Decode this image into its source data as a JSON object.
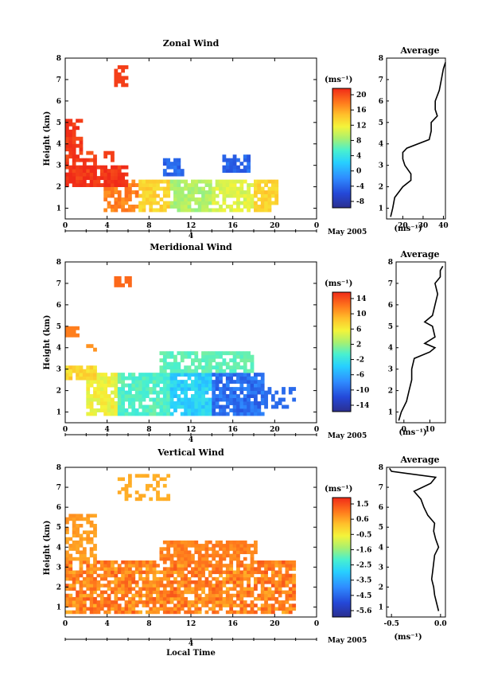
{
  "chart_data": [
    {
      "type": "heatmap",
      "title": "Zonal Wind",
      "ylabel": "Height (km)",
      "xlabel": "",
      "x_ticks": [
        "0",
        "4",
        "8",
        "12",
        "16",
        "20",
        "0"
      ],
      "y_ticks": [
        "1",
        "2",
        "3",
        "4",
        "5",
        "6",
        "7",
        "8"
      ],
      "xlim": [
        0,
        24
      ],
      "ylim": [
        0.5,
        8
      ],
      "date_axis_day": "4",
      "date_axis_label": "May 2005",
      "colorbar": {
        "unit_label": "(ms⁻¹)",
        "ticks": [
          "20",
          "16",
          "12",
          "8",
          "4",
          "0",
          "-4",
          "-8"
        ],
        "range": [
          -10,
          22
        ]
      },
      "profile": {
        "title": "Average",
        "x_ticks": [
          "20",
          "30",
          "40"
        ],
        "xlim": [
          12,
          41
        ],
        "xlabel": "(ms⁻¹)",
        "heights": [
          0.6,
          1.0,
          1.5,
          2.0,
          2.3,
          2.6,
          3.0,
          3.3,
          3.6,
          3.8,
          4.2,
          4.6,
          5.0,
          5.3,
          5.6,
          6.0,
          6.5,
          7.0,
          7.5,
          7.8
        ],
        "values": [
          14,
          15,
          16,
          20,
          24,
          24,
          21,
          20,
          20,
          22,
          33,
          34,
          34,
          37,
          36,
          36,
          38,
          39,
          40,
          41
        ]
      }
    },
    {
      "type": "heatmap",
      "title": "Meridional Wind",
      "ylabel": "Height (km)",
      "xlabel": "",
      "x_ticks": [
        "0",
        "4",
        "8",
        "12",
        "16",
        "20",
        "0"
      ],
      "y_ticks": [
        "1",
        "2",
        "3",
        "4",
        "5",
        "6",
        "7",
        "8"
      ],
      "xlim": [
        0,
        24
      ],
      "ylim": [
        0.5,
        8
      ],
      "date_axis_day": "4",
      "date_axis_label": "May 2005",
      "colorbar": {
        "unit_label": "(ms⁻¹)",
        "ticks": [
          "14",
          "10",
          "6",
          "2",
          "-2",
          "-6",
          "-10",
          "-14"
        ],
        "range": [
          -16,
          16
        ]
      },
      "profile": {
        "title": "Average",
        "x_ticks": [
          "0",
          "10"
        ],
        "xlim": [
          -3,
          16
        ],
        "xlabel": "(ms⁻¹)",
        "heights": [
          0.6,
          1.0,
          1.5,
          2.0,
          2.5,
          3.0,
          3.5,
          3.8,
          4.0,
          4.2,
          4.5,
          5.0,
          5.2,
          5.5,
          6.0,
          6.5,
          7.0,
          7.3,
          7.6,
          7.8
        ],
        "values": [
          -2,
          -1,
          1,
          2,
          3,
          3,
          4,
          10,
          12,
          8,
          12,
          11,
          8,
          11,
          12,
          13,
          12,
          14,
          14,
          15
        ]
      }
    },
    {
      "type": "heatmap",
      "title": "Vertical Wind",
      "ylabel": "Height (km)",
      "xlabel": "Local Time",
      "x_ticks": [
        "0",
        "4",
        "8",
        "12",
        "16",
        "20",
        "0"
      ],
      "y_ticks": [
        "1",
        "2",
        "3",
        "4",
        "5",
        "6",
        "7",
        "8"
      ],
      "xlim": [
        0,
        24
      ],
      "ylim": [
        0.5,
        8
      ],
      "date_axis_day": "4",
      "date_axis_label": "May 2005",
      "colorbar": {
        "unit_label": "(ms⁻¹)",
        "ticks": [
          "1.5",
          "0.6",
          "-0.5",
          "-1.6",
          "-2.5",
          "-3.5",
          "-4.5",
          "-5.6"
        ],
        "range": [
          -6.1,
          2.0
        ]
      },
      "profile": {
        "title": "Average",
        "x_ticks": [
          "-0.5",
          "0.0"
        ],
        "xlim": [
          -0.55,
          0.05
        ],
        "xlabel": "(ms⁻¹)",
        "heights": [
          0.8,
          1.2,
          1.6,
          2.0,
          2.4,
          2.8,
          3.2,
          3.6,
          4.0,
          4.4,
          4.8,
          5.2,
          5.6,
          6.0,
          6.4,
          6.8,
          7.2,
          7.5,
          7.8,
          7.95
        ],
        "values": [
          -0.02,
          -0.04,
          -0.06,
          -0.07,
          -0.09,
          -0.08,
          -0.07,
          -0.06,
          -0.02,
          -0.05,
          -0.07,
          -0.06,
          -0.13,
          -0.17,
          -0.2,
          -0.27,
          -0.1,
          -0.05,
          -0.5,
          -0.52
        ]
      }
    }
  ]
}
